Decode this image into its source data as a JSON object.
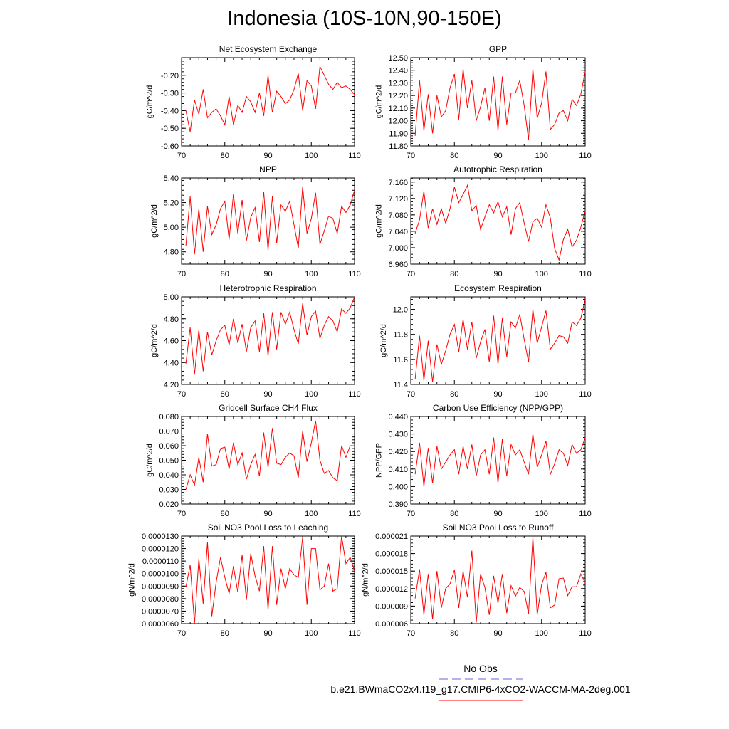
{
  "page": {
    "title": "Indonesia (10S-10N,90-150E)"
  },
  "legend": {
    "obs_label": "No Obs",
    "obs_color": "#6666dd",
    "model_label": "b.e21.BWmaCO2x4.f19_g17.CMIP6-4xCO2-WACCM-MA-2deg.001",
    "model_color": "#ff0000"
  },
  "chart_data": [
    {
      "type": "line",
      "title": "Net Ecosystem Exchange",
      "ylabel": "gC/m^2/d",
      "xlim": [
        70,
        110
      ],
      "ylim": [
        -0.6,
        -0.1
      ],
      "xticks": [
        70,
        80,
        90,
        100,
        110
      ],
      "xtick_labels": [
        "70",
        "80",
        "90",
        "100",
        "110"
      ],
      "yticks": [
        -0.6,
        -0.5,
        -0.4,
        -0.3,
        -0.2
      ],
      "ytick_labels": [
        "-0.60",
        "-0.50",
        "-0.40",
        "-0.30",
        "-0.20"
      ],
      "x_start": 71,
      "series": [
        {
          "color": "#ff0000",
          "values": [
            -0.4,
            -0.52,
            -0.34,
            -0.42,
            -0.28,
            -0.44,
            -0.41,
            -0.39,
            -0.43,
            -0.48,
            -0.32,
            -0.48,
            -0.37,
            -0.41,
            -0.32,
            -0.35,
            -0.41,
            -0.3,
            -0.43,
            -0.2,
            -0.41,
            -0.29,
            -0.32,
            -0.36,
            -0.34,
            -0.28,
            -0.19,
            -0.4,
            -0.23,
            -0.26,
            -0.39,
            -0.15,
            -0.2,
            -0.25,
            -0.28,
            -0.24,
            -0.27,
            -0.26,
            -0.28,
            -0.31
          ]
        }
      ]
    },
    {
      "type": "line",
      "title": "GPP",
      "ylabel": "gC/m^2/d",
      "xlim": [
        70,
        110
      ],
      "ylim": [
        11.8,
        12.5
      ],
      "xticks": [
        70,
        80,
        90,
        100,
        110
      ],
      "xtick_labels": [
        "70",
        "80",
        "90",
        "100",
        "110"
      ],
      "yticks": [
        11.8,
        11.9,
        12.0,
        12.1,
        12.2,
        12.3,
        12.4,
        12.5
      ],
      "ytick_labels": [
        "11.80",
        "11.90",
        "12.00",
        "12.10",
        "12.20",
        "12.30",
        "12.40",
        "12.50"
      ],
      "x_start": 71,
      "series": [
        {
          "color": "#ff0000",
          "values": [
            11.88,
            12.32,
            11.92,
            12.21,
            11.9,
            12.2,
            12.03,
            12.08,
            12.26,
            12.37,
            12.01,
            12.41,
            12.1,
            12.32,
            12.0,
            12.11,
            12.26,
            12.0,
            12.35,
            11.92,
            12.35,
            11.97,
            12.22,
            12.22,
            12.32,
            12.12,
            11.85,
            12.41,
            12.02,
            12.14,
            12.39,
            11.93,
            11.97,
            12.06,
            12.08,
            12.0,
            12.17,
            12.12,
            12.21,
            12.39
          ]
        }
      ]
    },
    {
      "type": "line",
      "title": "NPP",
      "ylabel": "gC/m^2/d",
      "xlim": [
        70,
        110
      ],
      "ylim": [
        4.7,
        5.4
      ],
      "xticks": [
        70,
        80,
        90,
        100,
        110
      ],
      "xtick_labels": [
        "70",
        "80",
        "90",
        "100",
        "110"
      ],
      "yticks": [
        4.8,
        5.0,
        5.2,
        5.4
      ],
      "ytick_labels": [
        "4.80",
        "5.00",
        "5.20",
        "5.40"
      ],
      "x_start": 71,
      "series": [
        {
          "color": "#ff0000",
          "values": [
            4.85,
            5.25,
            4.78,
            5.15,
            4.8,
            5.17,
            4.94,
            5.02,
            5.15,
            5.21,
            4.9,
            5.27,
            4.95,
            5.22,
            4.89,
            5.08,
            5.16,
            4.88,
            5.29,
            4.81,
            5.25,
            4.87,
            5.18,
            5.13,
            5.21,
            5.02,
            4.83,
            5.33,
            4.95,
            5.07,
            5.28,
            4.86,
            4.97,
            5.09,
            5.07,
            4.95,
            5.17,
            5.12,
            5.18,
            5.3
          ]
        }
      ]
    },
    {
      "type": "line",
      "title": "Autotrophic Respiration",
      "ylabel": "gC/m^2/d",
      "xlim": [
        70,
        110
      ],
      "ylim": [
        6.96,
        7.17
      ],
      "xticks": [
        70,
        80,
        90,
        100,
        110
      ],
      "xtick_labels": [
        "70",
        "80",
        "90",
        "100",
        "110"
      ],
      "yticks": [
        6.96,
        7.0,
        7.04,
        7.08,
        7.12,
        7.16
      ],
      "ytick_labels": [
        "6.960",
        "7.000",
        "7.040",
        "7.080",
        "7.120",
        "7.160"
      ],
      "x_start": 71,
      "series": [
        {
          "color": "#ff0000",
          "values": [
            7.035,
            7.068,
            7.138,
            7.048,
            7.095,
            7.057,
            7.095,
            7.06,
            7.095,
            7.148,
            7.11,
            7.13,
            7.152,
            7.09,
            7.103,
            7.045,
            7.075,
            7.105,
            7.085,
            7.112,
            7.075,
            7.1,
            7.032,
            7.095,
            7.11,
            7.06,
            7.015,
            7.063,
            7.072,
            7.05,
            7.105,
            7.073,
            6.998,
            6.97,
            7.02,
            7.045,
            7.002,
            7.018,
            7.05,
            7.09
          ]
        }
      ]
    },
    {
      "type": "line",
      "title": "Heterotrophic Respiration",
      "ylabel": "gC/m^2/d",
      "xlim": [
        70,
        110
      ],
      "ylim": [
        4.2,
        5.0
      ],
      "xticks": [
        70,
        80,
        90,
        100,
        110
      ],
      "xtick_labels": [
        "70",
        "80",
        "90",
        "100",
        "110"
      ],
      "yticks": [
        4.2,
        4.4,
        4.6,
        4.8,
        5.0
      ],
      "ytick_labels": [
        "4.20",
        "4.40",
        "4.60",
        "4.80",
        "5.00"
      ],
      "x_start": 71,
      "series": [
        {
          "color": "#ff0000",
          "values": [
            4.39,
            4.72,
            4.29,
            4.7,
            4.32,
            4.68,
            4.47,
            4.6,
            4.7,
            4.74,
            4.56,
            4.8,
            4.58,
            4.75,
            4.5,
            4.72,
            4.78,
            4.5,
            4.85,
            4.46,
            4.86,
            4.52,
            4.86,
            4.75,
            4.86,
            4.7,
            4.57,
            4.94,
            4.65,
            4.82,
            4.87,
            4.62,
            4.74,
            4.82,
            4.78,
            4.68,
            4.89,
            4.85,
            4.9,
            5.0
          ]
        }
      ]
    },
    {
      "type": "line",
      "title": "Ecosystem Respiration",
      "ylabel": "gC/m^2/d",
      "xlim": [
        70,
        110
      ],
      "ylim": [
        11.4,
        12.1
      ],
      "xticks": [
        70,
        80,
        90,
        100,
        110
      ],
      "xtick_labels": [
        "70",
        "80",
        "90",
        "100",
        "110"
      ],
      "yticks": [
        11.4,
        11.6,
        11.8,
        12.0
      ],
      "ytick_labels": [
        "11.4",
        "11.6",
        "11.8",
        "12.0"
      ],
      "x_start": 71,
      "series": [
        {
          "color": "#ff0000",
          "values": [
            11.44,
            11.79,
            11.43,
            11.75,
            11.42,
            11.72,
            11.56,
            11.67,
            11.8,
            11.88,
            11.66,
            11.92,
            11.68,
            11.9,
            11.61,
            11.74,
            11.84,
            11.58,
            11.95,
            11.56,
            11.93,
            11.62,
            11.9,
            11.85,
            11.96,
            11.76,
            11.58,
            12.0,
            11.73,
            11.86,
            11.99,
            11.68,
            11.73,
            11.79,
            11.78,
            11.73,
            11.9,
            11.87,
            11.93,
            12.08
          ]
        }
      ]
    },
    {
      "type": "line",
      "title": "Gridcell Surface CH4 Flux",
      "ylabel": "gC/m^2/d",
      "xlim": [
        70,
        110
      ],
      "ylim": [
        0.02,
        0.08
      ],
      "xticks": [
        70,
        80,
        90,
        100,
        110
      ],
      "xtick_labels": [
        "70",
        "80",
        "90",
        "100",
        "110"
      ],
      "yticks": [
        0.02,
        0.03,
        0.04,
        0.05,
        0.06,
        0.07,
        0.08
      ],
      "ytick_labels": [
        "0.020",
        "0.030",
        "0.040",
        "0.050",
        "0.060",
        "0.070",
        "0.080"
      ],
      "x_start": 71,
      "series": [
        {
          "color": "#ff0000",
          "values": [
            0.03,
            0.04,
            0.033,
            0.052,
            0.035,
            0.068,
            0.046,
            0.047,
            0.058,
            0.059,
            0.044,
            0.062,
            0.047,
            0.055,
            0.037,
            0.047,
            0.054,
            0.039,
            0.069,
            0.045,
            0.072,
            0.048,
            0.047,
            0.052,
            0.055,
            0.053,
            0.038,
            0.07,
            0.049,
            0.062,
            0.077,
            0.05,
            0.041,
            0.043,
            0.038,
            0.036,
            0.06,
            0.052,
            0.06,
            0.06
          ]
        }
      ]
    },
    {
      "type": "line",
      "title": "Carbon Use Efficiency (NPP/GPP)",
      "ylabel": "NPP/GPP",
      "xlim": [
        70,
        110
      ],
      "ylim": [
        0.39,
        0.44
      ],
      "xticks": [
        70,
        80,
        90,
        100,
        110
      ],
      "xtick_labels": [
        "70",
        "80",
        "90",
        "100",
        "110"
      ],
      "yticks": [
        0.39,
        0.4,
        0.41,
        0.42,
        0.43,
        0.44
      ],
      "ytick_labels": [
        "0.390",
        "0.400",
        "0.410",
        "0.420",
        "0.430",
        "0.440"
      ],
      "x_start": 71,
      "series": [
        {
          "color": "#ff0000",
          "values": [
            0.407,
            0.425,
            0.4,
            0.422,
            0.402,
            0.423,
            0.41,
            0.414,
            0.418,
            0.421,
            0.407,
            0.423,
            0.41,
            0.424,
            0.406,
            0.418,
            0.421,
            0.407,
            0.428,
            0.402,
            0.427,
            0.406,
            0.424,
            0.418,
            0.421,
            0.414,
            0.407,
            0.43,
            0.411,
            0.418,
            0.426,
            0.407,
            0.413,
            0.421,
            0.419,
            0.412,
            0.424,
            0.419,
            0.421,
            0.428
          ]
        }
      ]
    },
    {
      "type": "line",
      "title": "Soil NO3 Pool Loss to Leaching",
      "ylabel": "gN/m^2/d",
      "xlim": [
        70,
        110
      ],
      "ylim": [
        6e-06,
        1.3e-05
      ],
      "xticks": [
        70,
        80,
        90,
        100,
        110
      ],
      "xtick_labels": [
        "70",
        "80",
        "90",
        "100",
        "110"
      ],
      "yticks": [
        6e-06,
        7e-06,
        8e-06,
        9e-06,
        1e-05,
        1.1e-05,
        1.2e-05,
        1.3e-05
      ],
      "ytick_labels": [
        "0.0000060",
        "0.0000070",
        "0.0000080",
        "0.0000090",
        "0.0000100",
        "0.0000110",
        "0.0000120",
        "0.0000130"
      ],
      "x_start": 71,
      "series": [
        {
          "color": "#ff0000",
          "values": [
            8.9e-06,
            1.07e-05,
            6e-06,
            1.12e-05,
            7.6e-06,
            1.25e-05,
            6.6e-06,
            9.3e-06,
            1.13e-05,
            9.7e-06,
            8.4e-06,
            1.06e-05,
            8.5e-06,
            1.15e-05,
            7.9e-06,
            1.16e-05,
            9.8e-06,
            8.6e-06,
            1.22e-05,
            7.1e-06,
            1.22e-05,
            7.5e-06,
            1.04e-05,
            8.8e-06,
            1.04e-05,
            9.9e-06,
            9.7e-06,
            1.29e-05,
            7.5e-06,
            1.2e-05,
            1.2e-05,
            8.7e-06,
            9e-06,
            1.08e-05,
            8.6e-06,
            8.8e-06,
            1.3e-05,
            1.08e-05,
            1.13e-05,
            1.02e-05
          ]
        }
      ]
    },
    {
      "type": "line",
      "title": "Soil NO3 Pool Loss to Runoff",
      "ylabel": "gN/m^2/d",
      "xlim": [
        70,
        110
      ],
      "ylim": [
        6e-06,
        2.1e-05
      ],
      "xticks": [
        70,
        80,
        90,
        100,
        110
      ],
      "xtick_labels": [
        "70",
        "80",
        "90",
        "100",
        "110"
      ],
      "yticks": [
        6e-06,
        9e-06,
        1.2e-05,
        1.5e-05,
        1.8e-05,
        2.1e-05
      ],
      "ytick_labels": [
        "0.000006",
        "0.000009",
        "0.000012",
        "0.000015",
        "0.000018",
        "0.000021"
      ],
      "x_start": 71,
      "series": [
        {
          "color": "#ff0000",
          "values": [
            1.03e-05,
            1.53e-05,
            7.5e-06,
            1.45e-05,
            6.8e-06,
            1.5e-05,
            8.7e-06,
            1.2e-05,
            1.28e-05,
            1.52e-05,
            8.7e-06,
            1.5e-05,
            1.05e-05,
            1.85e-05,
            6.2e-06,
            1.45e-05,
            1.22e-05,
            7.5e-06,
            1.42e-05,
            9.5e-06,
            1.45e-05,
            7.8e-06,
            1.25e-05,
            1.07e-05,
            1.22e-05,
            1.15e-05,
            7.7e-06,
            2.08e-05,
            7.5e-06,
            1.27e-05,
            1.48e-05,
            8.7e-06,
            9.2e-06,
            1.37e-05,
            1.38e-05,
            1.08e-05,
            1.23e-05,
            1.23e-05,
            1.45e-05,
            1.3e-05
          ]
        }
      ]
    }
  ]
}
